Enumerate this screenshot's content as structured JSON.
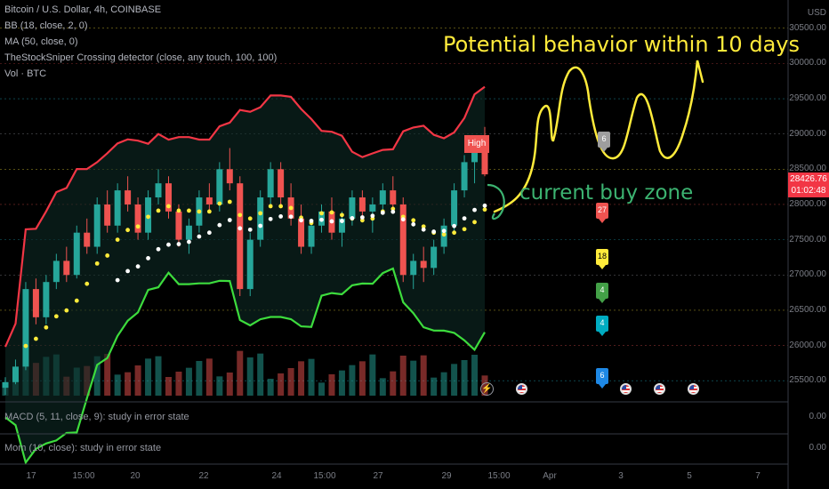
{
  "legend": {
    "symbol": "Bitcoin / U.S. Dollar, 4h, COINBASE",
    "bb": "BB (18, close, 2, 0)",
    "ma": "MA (50, close, 0)",
    "detector": "TheStockSniper Crossing detector (close, any touch, 100, 100)",
    "vol": "Vol · BTC"
  },
  "price_axis": {
    "currency": "USD",
    "ticks": [
      "30500.00",
      "30000.00",
      "29500.00",
      "29000.00",
      "28500.00",
      "28000.00",
      "27500.00",
      "27000.00",
      "26500.00",
      "26000.00",
      "25500.00"
    ],
    "current_price": "28426.76",
    "countdown": "01:02:48"
  },
  "subpanes": {
    "macd": "MACD (5, 11, close, 9): study in error state",
    "macd_value": "0.00",
    "mom": "Mom (10, close): study in error state",
    "mom_value": "0.00"
  },
  "time_axis": [
    "17",
    "15:00",
    "20",
    "22",
    "24",
    "15:00",
    "27",
    "29",
    "15:00",
    "Apr",
    "3",
    "5",
    "7"
  ],
  "annotations": {
    "potential": "Potential behavior within 10 days",
    "buy_zone": "current buy zone",
    "high_label": "High"
  },
  "markers": [
    "6",
    "27",
    "18",
    "4",
    "4",
    "6"
  ],
  "colors": {
    "up": "#26a69a",
    "down": "#ef5350",
    "bb_band": "#f23645",
    "bb_lower": "#3ddc3d",
    "ma_yellow": "#ffeb3b",
    "ma_white": "#ffffff",
    "annot_yellow": "#ffeb3b",
    "annot_green": "#3cb371"
  },
  "chart_data": {
    "type": "candlestick",
    "title": "Bitcoin / U.S. Dollar, 4h, COINBASE",
    "ylim": [
      25200,
      30900
    ],
    "current_price": 28426.76,
    "candles": [
      [
        25400,
        25550,
        25300,
        25480
      ],
      [
        25480,
        25800,
        25450,
        25700
      ],
      [
        25700,
        26900,
        25650,
        26800
      ],
      [
        26800,
        26950,
        26300,
        26400
      ],
      [
        26400,
        27000,
        26300,
        26900
      ],
      [
        26900,
        27300,
        26800,
        27200
      ],
      [
        27200,
        27400,
        26900,
        27000
      ],
      [
        27000,
        27700,
        26950,
        27600
      ],
      [
        27600,
        27800,
        27300,
        27400
      ],
      [
        27400,
        28100,
        27300,
        28000
      ],
      [
        28000,
        28200,
        27600,
        27700
      ],
      [
        27700,
        28300,
        27600,
        28200
      ],
      [
        28200,
        28400,
        27900,
        28000
      ],
      [
        28000,
        28100,
        27500,
        27600
      ],
      [
        27600,
        28200,
        27500,
        28100
      ],
      [
        28100,
        28500,
        28000,
        28300
      ],
      [
        28300,
        28400,
        27800,
        27900
      ],
      [
        27900,
        28000,
        27400,
        27500
      ],
      [
        27500,
        27800,
        27300,
        27700
      ],
      [
        27700,
        28200,
        27600,
        28100
      ],
      [
        28100,
        28300,
        27900,
        28000
      ],
      [
        28000,
        28600,
        27900,
        28500
      ],
      [
        28500,
        28800,
        28200,
        28300
      ],
      [
        28300,
        28400,
        26700,
        26800
      ],
      [
        26800,
        27600,
        26700,
        27500
      ],
      [
        27500,
        28200,
        27400,
        28100
      ],
      [
        28100,
        28600,
        28000,
        28500
      ],
      [
        28500,
        28600,
        28000,
        28100
      ],
      [
        28100,
        28300,
        27700,
        27800
      ],
      [
        27800,
        28000,
        27300,
        27400
      ],
      [
        27400,
        27800,
        27300,
        27700
      ],
      [
        27700,
        28000,
        27600,
        27900
      ],
      [
        27900,
        28100,
        27500,
        27600
      ],
      [
        27600,
        27900,
        27400,
        27800
      ],
      [
        27800,
        28200,
        27700,
        28100
      ],
      [
        28100,
        28200,
        27800,
        27900
      ],
      [
        27900,
        28100,
        27600,
        28000
      ],
      [
        28000,
        28300,
        27900,
        28200
      ],
      [
        28200,
        28400,
        27900,
        28000
      ],
      [
        28000,
        28100,
        26900,
        27000
      ],
      [
        27000,
        27300,
        26800,
        27200
      ],
      [
        27200,
        27400,
        26900,
        27100
      ],
      [
        27100,
        27500,
        27000,
        27400
      ],
      [
        27400,
        27800,
        27300,
        27700
      ],
      [
        27700,
        28300,
        27600,
        28200
      ],
      [
        28200,
        28700,
        28100,
        28600
      ],
      [
        28600,
        28900,
        28300,
        28800
      ],
      [
        28800,
        29100,
        28400,
        28427
      ]
    ],
    "x_labels": [
      "17",
      "15:00",
      "20",
      "22",
      "24",
      "15:00",
      "27",
      "29",
      "15:00",
      "Apr",
      "3",
      "5",
      "7"
    ]
  }
}
